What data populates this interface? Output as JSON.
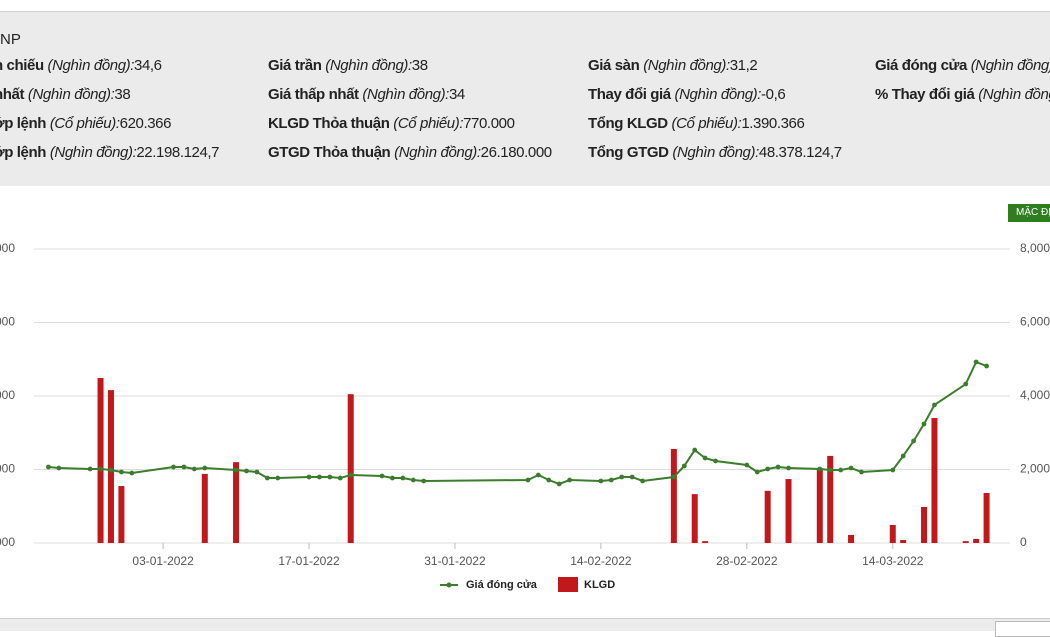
{
  "header": {
    "title": "NP"
  },
  "info": [
    [
      {
        "label": "n chiếu",
        "unit": "(Nghìn đồng):",
        "value": "34,6"
      },
      {
        "label": "nhất",
        "unit": "(Nghìn đồng):",
        "value": "38"
      },
      {
        "label": "ớp lệnh",
        "unit": "(Cổ phiếu):",
        "value": "620.366"
      },
      {
        "label": "ớp lệnh",
        "unit": "(Nghìn đồng):",
        "value": "22.198.124,7"
      }
    ],
    [
      {
        "label": "Giá trần",
        "unit": "(Nghìn đồng):",
        "value": "38"
      },
      {
        "label": "Giá thấp nhất",
        "unit": "(Nghìn đồng):",
        "value": "34"
      },
      {
        "label": "KLGD Thỏa thuận",
        "unit": "(Cổ phiếu):",
        "value": "770.000"
      },
      {
        "label": "GTGD Thỏa thuận",
        "unit": "(Nghìn đồng):",
        "value": "26.180.000"
      }
    ],
    [
      {
        "label": "Giá sàn",
        "unit": "(Nghìn đồng):",
        "value": "31,2"
      },
      {
        "label": "Thay đổi giá",
        "unit": "(Nghìn đồng):",
        "value": "-0,6"
      },
      {
        "label": "Tổng KLGD",
        "unit": "(Cổ phiếu):",
        "value": "1.390.366"
      },
      {
        "label": "Tổng GTGD",
        "unit": "(Nghìn đồng):",
        "value": "48.378.124,7"
      }
    ],
    [
      {
        "label": "Giá đóng cửa",
        "unit": "(Nghìn đồng)."
      },
      {
        "label": "% Thay đổi giá",
        "unit": "(Nghìn đồng"
      }
    ]
  ],
  "ui": {
    "default_button": "MẶC ĐỊ"
  },
  "chart_data": {
    "type": "combo",
    "x": [
      "2021-12-23",
      "2021-12-24",
      "2021-12-27",
      "2021-12-28",
      "2021-12-29",
      "2021-12-30",
      "2021-12-31",
      "2022-01-04",
      "2022-01-05",
      "2022-01-06",
      "2022-01-07",
      "2022-01-10",
      "2022-01-11",
      "2022-01-12",
      "2022-01-13",
      "2022-01-14",
      "2022-01-17",
      "2022-01-18",
      "2022-01-19",
      "2022-01-20",
      "2022-01-21",
      "2022-01-24",
      "2022-01-25",
      "2022-01-26",
      "2022-01-27",
      "2022-01-28",
      "2022-02-07",
      "2022-02-08",
      "2022-02-09",
      "2022-02-10",
      "2022-02-11",
      "2022-02-14",
      "2022-02-15",
      "2022-02-16",
      "2022-02-17",
      "2022-02-18",
      "2022-02-21",
      "2022-02-22",
      "2022-02-23",
      "2022-02-24",
      "2022-02-25",
      "2022-02-28",
      "2022-03-01",
      "2022-03-02",
      "2022-03-03",
      "2022-03-04",
      "2022-03-07",
      "2022-03-08",
      "2022-03-09",
      "2022-03-10",
      "2022-03-11",
      "2022-03-14",
      "2022-03-15",
      "2022-03-16",
      "2022-03-17",
      "2022-03-18",
      "2022-03-21",
      "2022-03-22",
      "2022-03-23"
    ],
    "series": [
      {
        "name": "Giá đóng cửa",
        "type": "line",
        "color": "#3a7d2c",
        "axis": "y",
        "values": [
          10340,
          10200,
          10070,
          10070,
          9930,
          9660,
          9520,
          10340,
          10340,
          10070,
          10200,
          9930,
          9800,
          9660,
          8840,
          8840,
          8980,
          8980,
          8980,
          8840,
          9250,
          9120,
          8840,
          8840,
          8570,
          8440,
          8570,
          9250,
          8570,
          8030,
          8570,
          8440,
          8570,
          8980,
          8980,
          8440,
          8980,
          10480,
          12650,
          11560,
          11160,
          10610,
          9660,
          10070,
          10340,
          10200,
          10070,
          9930,
          9930,
          10200,
          9660,
          9930,
          11840,
          13880,
          16190,
          18780,
          21630,
          24630,
          24080
        ]
      },
      {
        "name": "KLGD",
        "type": "bar",
        "color": "#c0181b",
        "axis": "y2",
        "values": [
          0,
          0,
          0,
          4490,
          4160,
          1550,
          0,
          0,
          0,
          0,
          1880,
          2200,
          0,
          0,
          0,
          0,
          0,
          0,
          0,
          0,
          4050,
          0,
          0,
          0,
          0,
          0,
          0,
          0,
          0,
          0,
          0,
          0,
          0,
          0,
          0,
          0,
          2560,
          0,
          1330,
          50,
          0,
          0,
          0,
          1420,
          0,
          1740,
          2040,
          2370,
          0,
          220,
          0,
          490,
          80,
          0,
          980,
          3400,
          50,
          110,
          1360
        ]
      }
    ],
    "xlim": [
      "2021-12-22",
      "2022-03-24"
    ],
    "xticks": [
      {
        "value": "2022-01-03",
        "label": "03-01-2022"
      },
      {
        "value": "2022-01-17",
        "label": "17-01-2022"
      },
      {
        "value": "2022-01-31",
        "label": "31-01-2022"
      },
      {
        "value": "2022-02-14",
        "label": "14-02-2022"
      },
      {
        "value": "2022-02-28",
        "label": "28-02-2022"
      },
      {
        "value": "2022-03-14",
        "label": "14-03-2022"
      }
    ],
    "ylim": [
      0,
      40000
    ],
    "yticks": [
      {
        "value": 0,
        "label": "000"
      },
      {
        "value": 10000,
        "label": "000"
      },
      {
        "value": 20000,
        "label": "000"
      },
      {
        "value": 30000,
        "label": "000"
      },
      {
        "value": 40000,
        "label": "000"
      }
    ],
    "y2lim": [
      0,
      8000
    ],
    "y2ticks": [
      0,
      {
        "value": 2000,
        "label": "2,000"
      },
      {
        "value": 4000,
        "label": "4,000"
      },
      {
        "value": 6000,
        "label": "6,000"
      },
      {
        "value": 8000,
        "label": "8,000"
      }
    ],
    "grid": true
  }
}
